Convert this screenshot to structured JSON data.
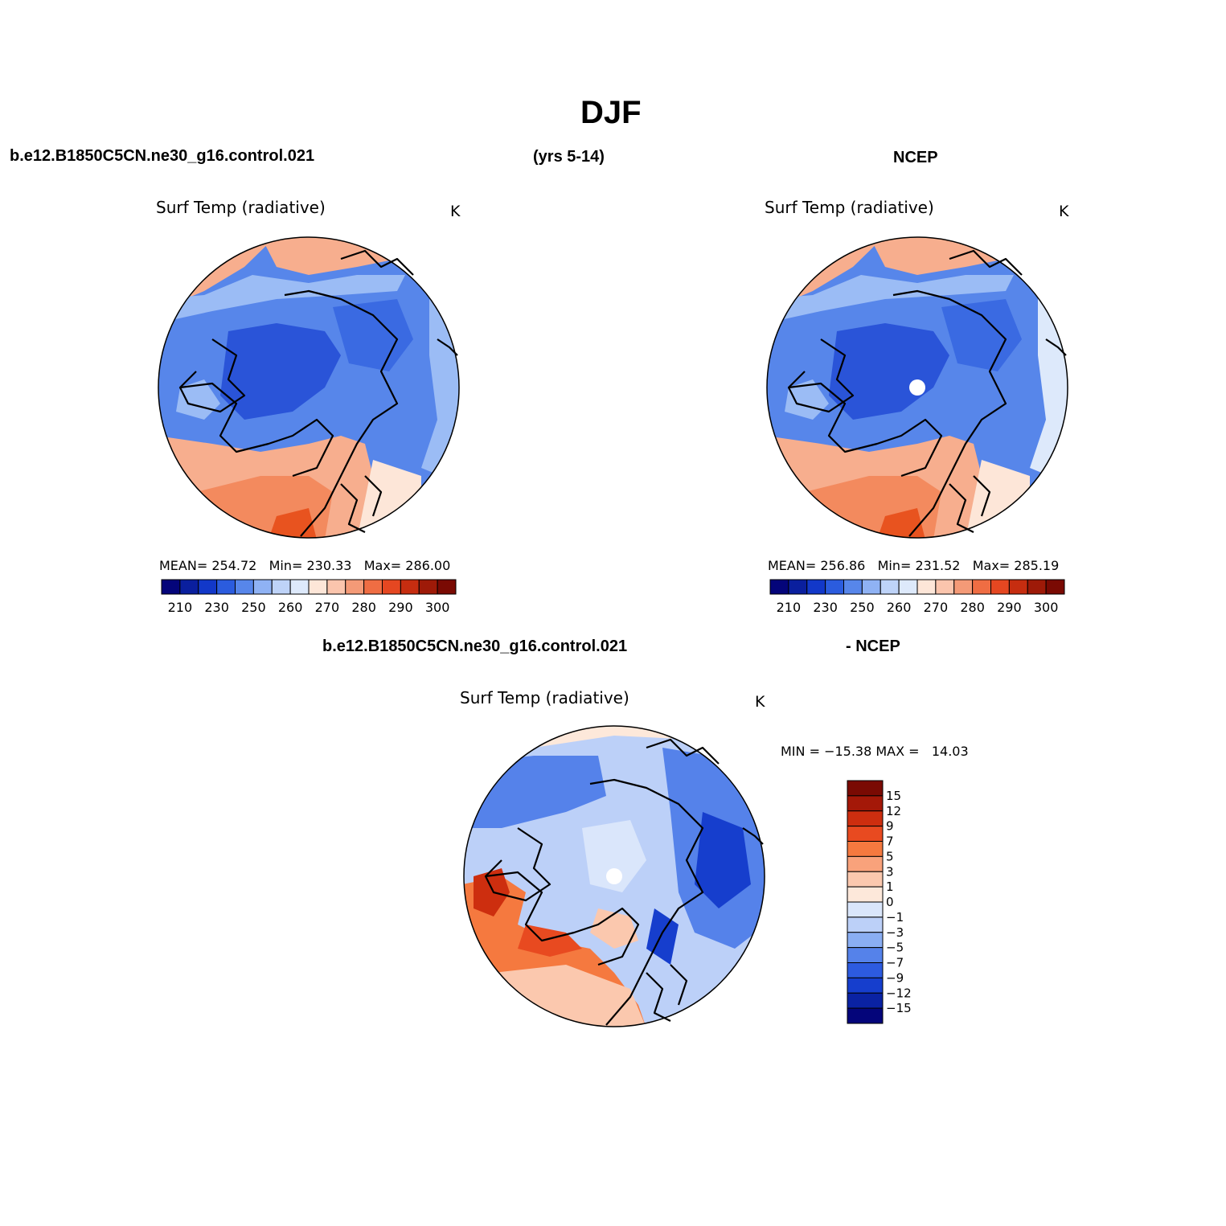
{
  "figure": {
    "title": "DJF",
    "header_case": "b.e12.B1850C5CN.ne30_g16.control.021",
    "header_years": "(yrs 5-14)",
    "header_obs": "NCEP",
    "diff_case": "b.e12.B1850C5CN.ne30_g16.control.021",
    "diff_obs": "- NCEP"
  },
  "panels": [
    {
      "title": "Surf Temp (radiative)",
      "units": "K",
      "mean_label": "MEAN=",
      "mean_value": "254.72",
      "min_label": "Min=",
      "min_value": "230.33",
      "max_label": "Max=",
      "max_value": "286.00"
    },
    {
      "title": "Surf Temp (radiative)",
      "units": "K",
      "mean_label": "MEAN=",
      "mean_value": "256.86",
      "min_label": "Min=",
      "min_value": "231.52",
      "max_label": "Max=",
      "max_value": "285.19"
    },
    {
      "title": "Surf Temp (radiative)",
      "units": "K",
      "minmax": "MIN = −15.38 MAX =   14.03"
    }
  ],
  "colorbar_abs": {
    "colors": [
      "#04057a",
      "#0a1f9e",
      "#1238c9",
      "#2b5cde",
      "#5786ea",
      "#8fb2f4",
      "#bed3f8",
      "#dde9fb",
      "#fde6d8",
      "#fbc5ad",
      "#f49a77",
      "#ef6d43",
      "#e54721",
      "#c62d10",
      "#9e1a08",
      "#7a0a03"
    ],
    "labels": [
      "210",
      "230",
      "250",
      "260",
      "270",
      "280",
      "290",
      "300"
    ]
  },
  "colorbar_diff": {
    "colors": [
      "#7a0a03",
      "#a41808",
      "#cd2e0f",
      "#e84a20",
      "#f5793f",
      "#f9a27b",
      "#fbc8ae",
      "#fde8da",
      "#dae6fb",
      "#bcd0f8",
      "#8aaef3",
      "#5582ea",
      "#2d5be0",
      "#163ecd",
      "#0a22a3",
      "#04057a"
    ],
    "labels": [
      "15",
      "12",
      "9",
      "7",
      "5",
      "3",
      "1",
      "0",
      "−1",
      "−3",
      "−5",
      "−7",
      "−9",
      "−12",
      "−15"
    ]
  },
  "map_colors": {
    "warm_dark": "#e8531f",
    "warm_mid": "#f38a5e",
    "warm_light": "#f7ae8e",
    "warm_pale": "#fde6d8",
    "cold_pale": "#dde9fb",
    "cold_light": "#9bbcf5",
    "cold_mid": "#5786ea",
    "cold_dark": "#3a6ae2",
    "cold_deep": "#2a54d8"
  }
}
